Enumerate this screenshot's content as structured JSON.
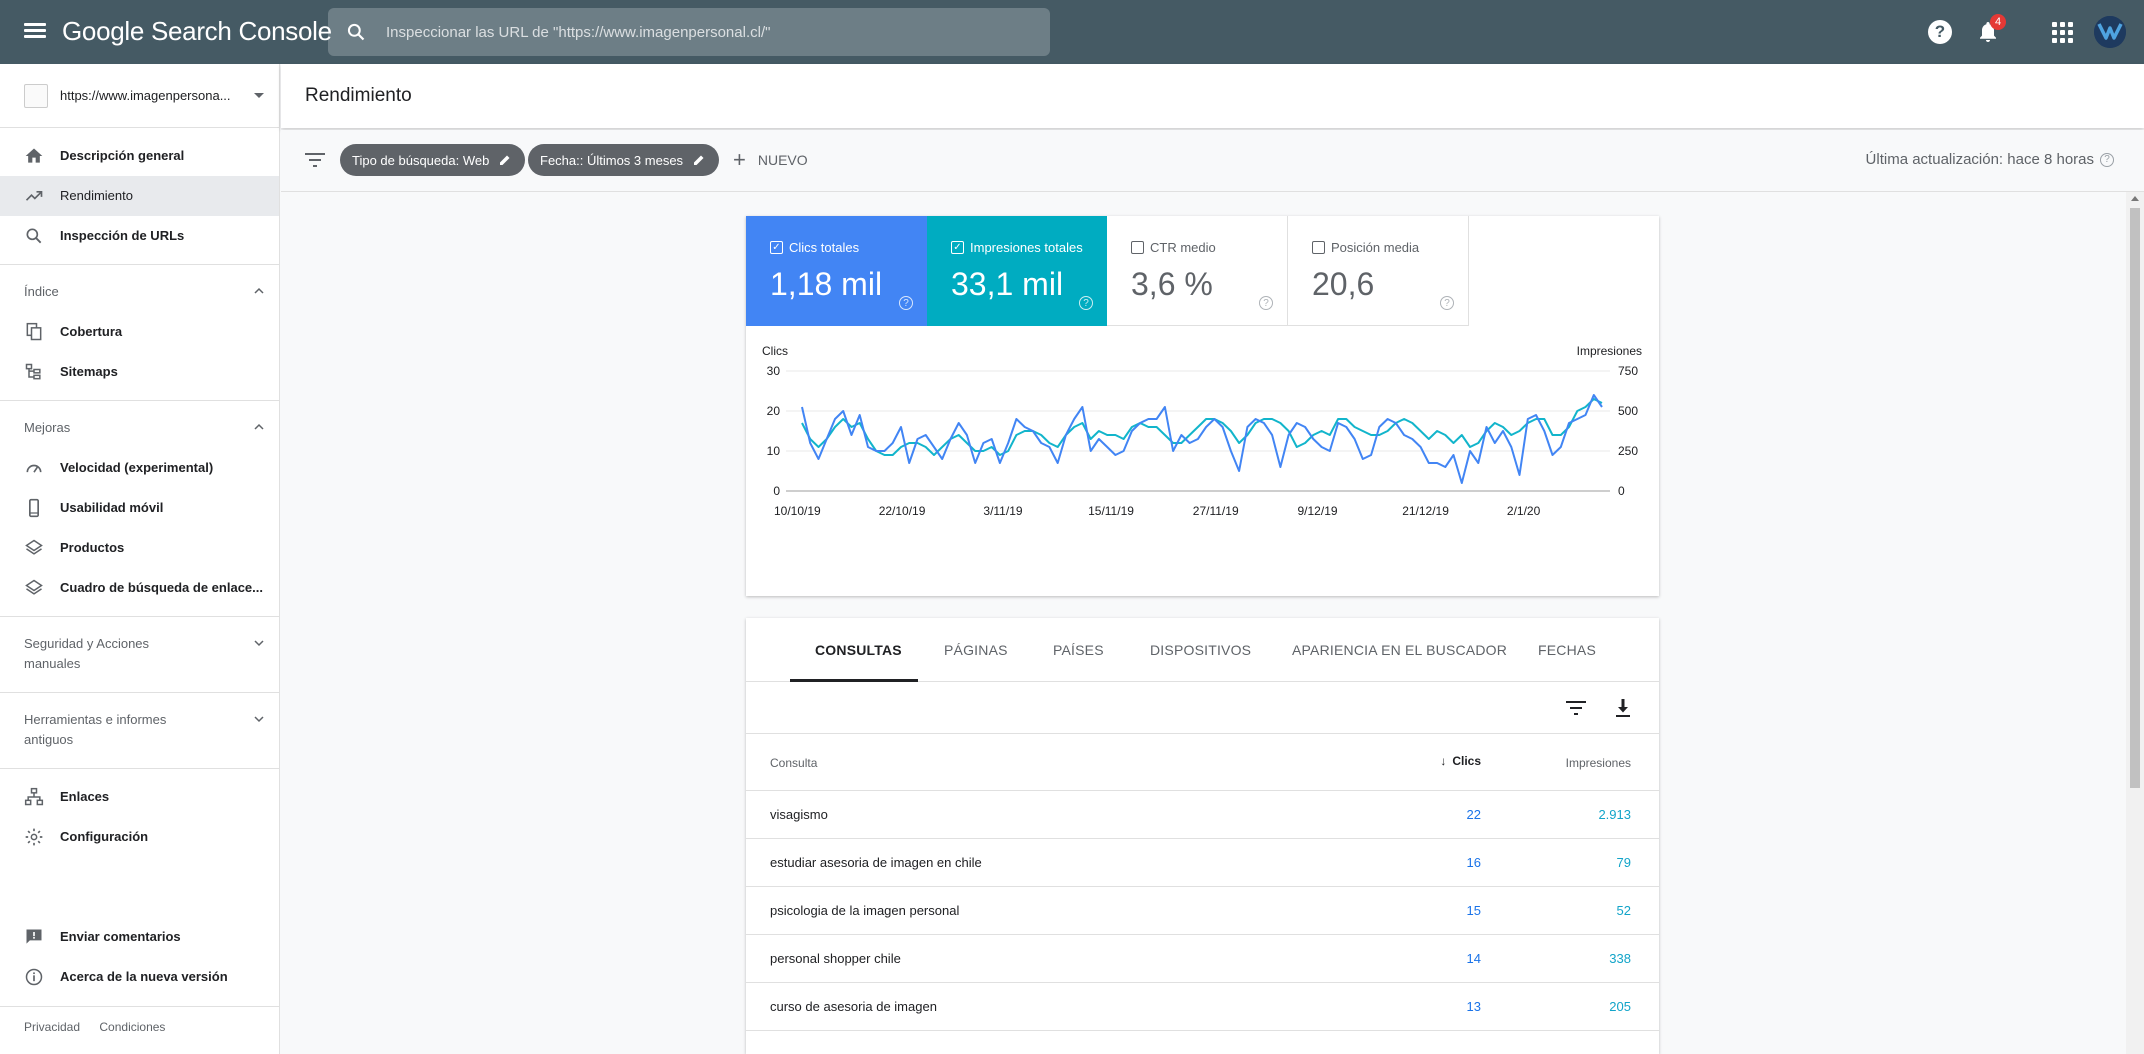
{
  "header": {
    "logo": "Google Search Console",
    "search_placeholder": "Inspeccionar las URL de \"https://www.imagenpersonal.cl/\"",
    "notifications_count": "4"
  },
  "sidebar": {
    "property": "https://www.imagenpersona...",
    "items_top": [
      {
        "label": "Descripción general",
        "icon": "home-icon"
      },
      {
        "label": "Rendimiento",
        "icon": "trending-up-icon",
        "active": true
      },
      {
        "label": "Inspección de URLs",
        "icon": "search-icon"
      }
    ],
    "section_indice": "Índice",
    "items_indice": [
      {
        "label": "Cobertura",
        "icon": "file-copy-icon"
      },
      {
        "label": "Sitemaps",
        "icon": "sitemap-icon"
      }
    ],
    "section_mejoras": "Mejoras",
    "items_mejoras": [
      {
        "label": "Velocidad (experimental)",
        "icon": "speed-icon"
      },
      {
        "label": "Usabilidad móvil",
        "icon": "smartphone-icon"
      },
      {
        "label": "Productos",
        "icon": "layers-icon"
      },
      {
        "label": "Cuadro de búsqueda de enlace...",
        "icon": "layers-icon"
      }
    ],
    "section_seguridad": "Seguridad y Acciones manuales",
    "section_herramientas": "Herramientas e informes antiguos",
    "items_bottom": [
      {
        "label": "Enlaces",
        "icon": "links-icon"
      },
      {
        "label": "Configuración",
        "icon": "gear-icon"
      }
    ],
    "items_footer": [
      {
        "label": "Enviar comentarios",
        "icon": "feedback-icon"
      },
      {
        "label": "Acerca de la nueva versión",
        "icon": "info-icon"
      }
    ],
    "links": {
      "privacy": "Privacidad",
      "terms": "Condiciones"
    }
  },
  "page": {
    "title": "Rendimiento",
    "filters": {
      "type_chip": "Tipo de búsqueda: Web",
      "date_chip": "Fecha:: Últimos 3 meses",
      "new_label": "NUEVO"
    },
    "updated": "Última actualización: hace 8 horas"
  },
  "metrics": {
    "clicks": {
      "label": "Clics totales",
      "value": "1,18 mil",
      "checked": true,
      "color": "#4285f4"
    },
    "impressions": {
      "label": "Impresiones totales",
      "value": "33,1 mil",
      "checked": true,
      "color": "#00acc1"
    },
    "ctr": {
      "label": "CTR medio",
      "value": "3,6 %",
      "checked": false
    },
    "position": {
      "label": "Posición media",
      "value": "20,6",
      "checked": false
    }
  },
  "chart_data": {
    "type": "line",
    "ylabel_left": "Clics",
    "ylabel_right": "Impresiones",
    "y_left_ticks": [
      "30",
      "20",
      "10",
      "0"
    ],
    "y_right_ticks": [
      "750",
      "500",
      "250",
      "0"
    ],
    "ylim_left": [
      0,
      30
    ],
    "ylim_right": [
      0,
      750
    ],
    "x_tick_labels": [
      "10/10/19",
      "22/10/19",
      "3/11/19",
      "15/11/19",
      "27/11/19",
      "9/12/19",
      "21/12/19",
      "2/1/20"
    ],
    "grid": true,
    "series": [
      {
        "name": "Clics",
        "axis": "left",
        "color": "#4285f4",
        "values": [
          21,
          12,
          8,
          13,
          18,
          20,
          14,
          19,
          11,
          10,
          10,
          12,
          16,
          7,
          13,
          14,
          11,
          8,
          13,
          17,
          14,
          7,
          12,
          13,
          7,
          12,
          18,
          16,
          15,
          12,
          11,
          7,
          14,
          18,
          21,
          10,
          13,
          11,
          9,
          10,
          15,
          17,
          18,
          18,
          21,
          10,
          14,
          12,
          13,
          16,
          18,
          16,
          10,
          5,
          16,
          18,
          17,
          14,
          6,
          14,
          17,
          16,
          13,
          11,
          10,
          17,
          16,
          13,
          8,
          9,
          16,
          18,
          17,
          14,
          13,
          11,
          7,
          7,
          6,
          9,
          2,
          10,
          7,
          16,
          12,
          15,
          11,
          4,
          18,
          19,
          15,
          9,
          11,
          17,
          18,
          19,
          24,
          21
        ]
      },
      {
        "name": "Impresiones",
        "axis": "left",
        "color": "#12b5cb",
        "values": [
          17,
          13,
          11,
          13,
          16,
          18,
          16,
          17,
          13,
          10,
          9,
          9,
          11,
          12,
          12,
          11,
          9,
          11,
          13,
          14,
          12,
          10,
          10,
          11,
          9,
          10,
          14,
          15,
          15,
          14,
          12,
          11,
          14,
          16,
          17,
          13,
          15,
          14,
          14,
          13,
          16,
          17,
          16,
          16,
          14,
          12,
          12,
          14,
          16,
          18,
          18,
          17,
          15,
          12,
          14,
          17,
          18,
          18,
          17,
          15,
          11,
          12,
          14,
          15,
          14,
          18,
          18,
          16,
          15,
          14,
          14,
          15,
          17,
          18,
          17,
          15,
          13,
          15,
          14,
          12,
          14,
          11,
          12,
          15,
          17,
          16,
          14,
          15,
          17,
          18,
          18,
          14,
          14,
          16,
          20,
          21,
          23,
          22
        ]
      }
    ]
  },
  "table": {
    "tabs": [
      "CONSULTAS",
      "PÁGINAS",
      "PAÍSES",
      "DISPOSITIVOS",
      "APARIENCIA EN EL BUSCADOR",
      "FECHAS"
    ],
    "headers": {
      "query": "Consulta",
      "clicks": "Clics",
      "impressions": "Impresiones"
    },
    "rows": [
      {
        "query": "visagismo",
        "clicks": "22",
        "impressions": "2.913"
      },
      {
        "query": "estudiar asesoria de imagen en chile",
        "clicks": "16",
        "impressions": "79"
      },
      {
        "query": "psicologia de la imagen personal",
        "clicks": "15",
        "impressions": "52"
      },
      {
        "query": "personal shopper chile",
        "clicks": "14",
        "impressions": "338"
      },
      {
        "query": "curso de asesoria de imagen",
        "clicks": "13",
        "impressions": "205"
      }
    ]
  }
}
